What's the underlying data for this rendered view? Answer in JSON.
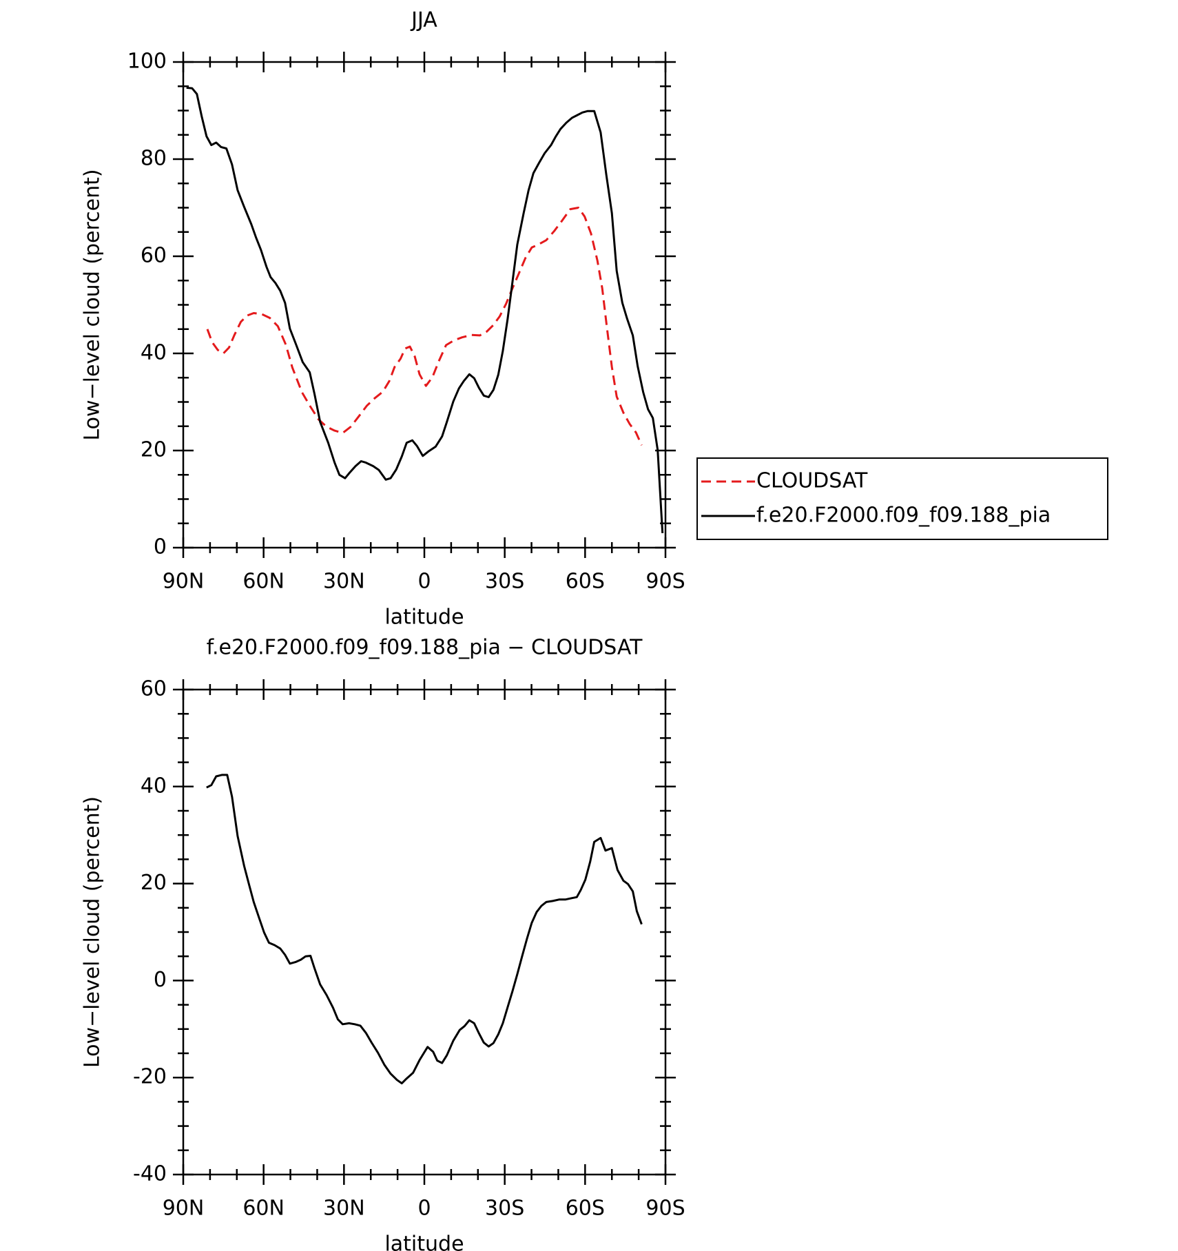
{
  "chart_data": [
    {
      "type": "line",
      "title": "JJA",
      "x_label": "latitude",
      "y_label": "Low−level cloud (percent)",
      "xlim": [
        90,
        -90
      ],
      "xticks": [
        {
          "value": 90,
          "label": "90N"
        },
        {
          "value": 60,
          "label": "60N"
        },
        {
          "value": 30,
          "label": "30N"
        },
        0,
        {
          "value": -30,
          "label": "30S"
        },
        {
          "value": -60,
          "label": "60S"
        },
        {
          "value": -90,
          "label": "90S"
        }
      ],
      "ylim": [
        0,
        100
      ],
      "yticks": [
        0,
        20,
        40,
        60,
        80,
        100
      ],
      "grid": false,
      "legend": "right",
      "series": [
        {
          "name": "CLOUDSAT",
          "color": "#e41a1c",
          "line_style": "dashed",
          "x": [
            81.0,
            79.2,
            77.1,
            75.0,
            72.9,
            70.9,
            68.5,
            66.1,
            63.7,
            60.7,
            57.7,
            54.7,
            51.7,
            49.3,
            45.7,
            42.5,
            39.5,
            36.5,
            33.5,
            30.5,
            27.5,
            24.5,
            21.5,
            18.5,
            15.5,
            13.1,
            11.1,
            8.9,
            7.2,
            5.4,
            3.6,
            1.8,
            -0.6,
            -3.0,
            -5.4,
            -8.1,
            -11.1,
            -14.1,
            -17.7,
            -20.7,
            -23.3,
            -25.7,
            -28.1,
            -30.5,
            -32.9,
            -35.3,
            -37.7,
            -40.1,
            -42.5,
            -45.5,
            -48.5,
            -51.5,
            -54.5,
            -57.5,
            -59.8,
            -62.2,
            -64.6,
            -66.4,
            -68.2,
            -70.0,
            -71.8,
            -74.3,
            -76.6,
            -79.0,
            -81.1
          ],
          "values": [
            45.0,
            42.3,
            40.7,
            40.0,
            41.2,
            43.8,
            46.5,
            47.8,
            48.3,
            48.1,
            47.3,
            45.6,
            41.8,
            37.1,
            32.0,
            29.0,
            26.4,
            24.9,
            24.1,
            23.6,
            24.9,
            27.0,
            29.2,
            30.8,
            32.1,
            34.3,
            37.2,
            38.9,
            41.0,
            41.4,
            39.4,
            35.7,
            33.3,
            35.1,
            38.4,
            41.7,
            42.7,
            43.3,
            43.8,
            43.7,
            44.5,
            45.8,
            47.6,
            50.2,
            53.4,
            56.5,
            59.6,
            61.8,
            62.4,
            63.3,
            65.2,
            67.4,
            69.7,
            70.0,
            68.2,
            64.7,
            59.1,
            53.4,
            45.1,
            37.2,
            31.1,
            27.8,
            25.5,
            23.7,
            21.1
          ]
        },
        {
          "name": "f.e20.F2000.f09_f09.188_pia",
          "color": "#000000",
          "line_style": "solid",
          "x": [
            88.8,
            86.7,
            84.9,
            83.1,
            81.3,
            79.5,
            77.7,
            75.9,
            73.9,
            71.8,
            69.7,
            67.3,
            64.6,
            62.8,
            61.0,
            58.9,
            57.4,
            55.6,
            53.8,
            52.0,
            50.2,
            47.8,
            45.4,
            42.8,
            41.0,
            38.9,
            35.9,
            33.5,
            31.7,
            29.6,
            27.8,
            25.7,
            23.6,
            21.8,
            19.1,
            17.0,
            14.4,
            12.6,
            10.5,
            8.4,
            6.6,
            4.5,
            2.7,
            0.6,
            -1.5,
            -4.2,
            -6.6,
            -8.4,
            -10.8,
            -12.9,
            -14.7,
            -16.8,
            -18.6,
            -20.4,
            -22.2,
            -24.0,
            -25.8,
            -27.6,
            -29.3,
            -31.1,
            -32.9,
            -34.7,
            -37.1,
            -38.9,
            -40.7,
            -42.8,
            -44.9,
            -47.3,
            -49.1,
            -50.8,
            -53.0,
            -55.1,
            -56.9,
            -59.0,
            -61.0,
            -63.4,
            -65.8,
            -67.9,
            -70.0,
            -71.8,
            -73.9,
            -75.7,
            -77.8,
            -79.6,
            -81.7,
            -83.5,
            -85.3,
            -87.1,
            -88.9
          ],
          "values": [
            94.7,
            94.6,
            93.4,
            88.8,
            84.7,
            82.9,
            83.4,
            82.5,
            82.2,
            78.9,
            73.6,
            70.2,
            66.6,
            63.8,
            61.3,
            57.8,
            55.7,
            54.5,
            52.9,
            50.4,
            45.1,
            41.7,
            38.2,
            36.1,
            31.6,
            25.9,
            21.6,
            17.5,
            15.0,
            14.3,
            15.5,
            16.8,
            17.8,
            17.5,
            16.8,
            16.0,
            14.0,
            14.3,
            16.1,
            18.8,
            21.6,
            22.1,
            20.9,
            18.9,
            19.8,
            20.8,
            22.9,
            25.9,
            30.1,
            32.8,
            34.3,
            35.7,
            34.9,
            32.9,
            31.3,
            31.0,
            32.5,
            35.6,
            40.5,
            47.1,
            54.7,
            62.4,
            69.0,
            73.6,
            77.1,
            79.2,
            81.2,
            82.9,
            84.7,
            86.2,
            87.5,
            88.5,
            89.0,
            89.6,
            89.9,
            89.9,
            85.5,
            76.8,
            68.9,
            57.0,
            50.4,
            47.1,
            43.7,
            37.4,
            32.0,
            28.5,
            26.7,
            20.1,
            3.0
          ]
        }
      ]
    },
    {
      "type": "line",
      "title": "f.e20.F2000.f09_f09.188_pia − CLOUDSAT",
      "x_label": "latitude",
      "y_label": "Low−level cloud (percent)",
      "xlim": [
        90,
        -90
      ],
      "xticks": [
        {
          "value": 90,
          "label": "90N"
        },
        {
          "value": 60,
          "label": "60N"
        },
        {
          "value": 30,
          "label": "30N"
        },
        0,
        {
          "value": -30,
          "label": "30S"
        },
        {
          "value": -60,
          "label": "60S"
        },
        {
          "value": -90,
          "label": "90S"
        }
      ],
      "ylim": [
        -40,
        60
      ],
      "yticks": [
        -40,
        -20,
        0,
        20,
        40,
        60
      ],
      "grid": false,
      "series": [
        {
          "color": "#000000",
          "line_style": "solid",
          "x": [
            81.3,
            79.5,
            77.7,
            75.6,
            73.6,
            71.8,
            69.7,
            67.3,
            65.5,
            63.7,
            61.6,
            59.8,
            58.0,
            55.9,
            53.8,
            52.0,
            50.2,
            48.1,
            46.1,
            44.3,
            42.5,
            41.0,
            38.9,
            36.5,
            34.1,
            32.3,
            30.5,
            28.1,
            26.0,
            23.9,
            21.8,
            19.7,
            17.3,
            14.9,
            12.6,
            10.2,
            8.4,
            6.6,
            4.2,
            1.8,
            -1.2,
            -3.3,
            -4.8,
            -6.6,
            -8.4,
            -10.8,
            -13.2,
            -15.0,
            -16.8,
            -18.6,
            -20.4,
            -22.2,
            -24.0,
            -25.8,
            -27.6,
            -29.3,
            -31.1,
            -32.9,
            -34.7,
            -36.5,
            -38.3,
            -40.1,
            -41.9,
            -43.7,
            -45.5,
            -47.9,
            -50.3,
            -52.6,
            -55.1,
            -56.9,
            -58.4,
            -60.1,
            -61.9,
            -63.4,
            -65.8,
            -67.6,
            -70.0,
            -72.1,
            -74.3,
            -76.0,
            -77.8,
            -79.3,
            -81.1
          ],
          "values": [
            39.8,
            40.3,
            42.1,
            42.4,
            42.4,
            37.9,
            29.8,
            23.7,
            19.9,
            16.2,
            12.8,
            9.9,
            7.8,
            7.3,
            6.6,
            5.3,
            3.5,
            3.8,
            4.3,
            5.0,
            5.1,
            2.5,
            -0.8,
            -3.0,
            -5.6,
            -8.0,
            -9.0,
            -8.8,
            -9.0,
            -9.3,
            -10.8,
            -12.8,
            -14.9,
            -17.4,
            -19.2,
            -20.5,
            -21.2,
            -20.2,
            -19.0,
            -16.4,
            -13.7,
            -14.7,
            -16.5,
            -17.0,
            -15.4,
            -12.4,
            -10.2,
            -9.4,
            -8.2,
            -8.8,
            -10.9,
            -12.8,
            -13.6,
            -12.9,
            -11.1,
            -8.8,
            -5.5,
            -2.2,
            1.3,
            5.0,
            8.6,
            11.9,
            14.1,
            15.4,
            16.2,
            16.4,
            16.7,
            16.7,
            17.0,
            17.2,
            18.7,
            20.8,
            24.5,
            28.6,
            29.4,
            26.8,
            27.3,
            22.8,
            20.6,
            19.9,
            18.4,
            14.3,
            11.6
          ]
        }
      ]
    }
  ]
}
